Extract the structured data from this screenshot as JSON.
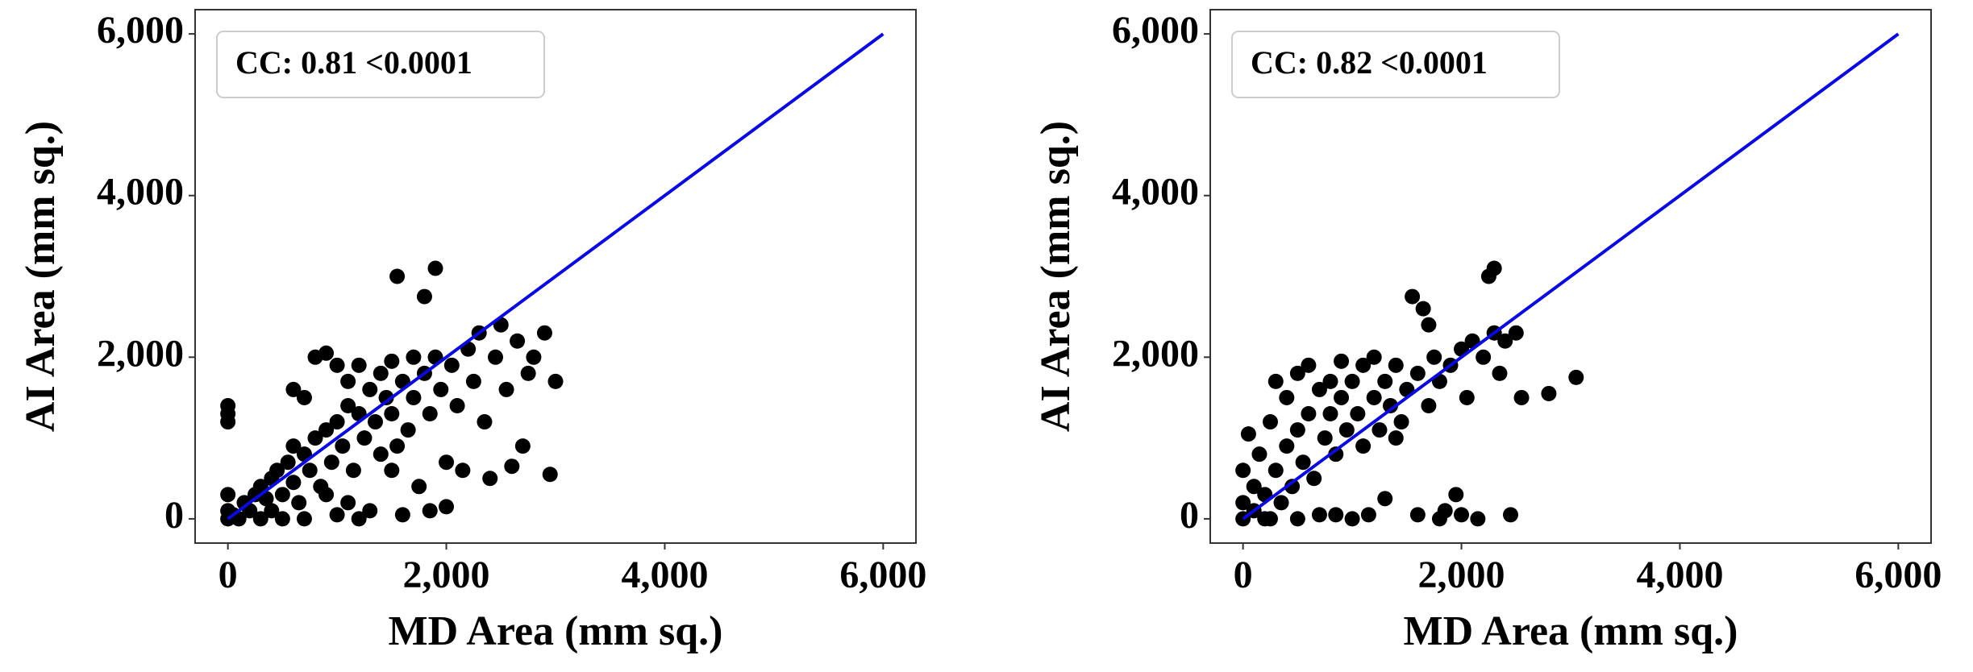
{
  "chart_data": [
    {
      "type": "scatter",
      "annotation": "CC: 0.81 <0.0001",
      "xlabel": "MD Area (mm sq.)",
      "ylabel": "AI Area (mm sq.)",
      "color": "#000000",
      "xlim": [
        -300,
        6300
      ],
      "ylim": [
        -300,
        6300
      ],
      "xticks": [
        0,
        {
          "value": 2000,
          "label": "2,000"
        },
        {
          "value": 4000,
          "label": "4,000"
        },
        {
          "value": 6000,
          "label": "6,000"
        }
      ],
      "yticks": [
        0,
        {
          "value": 2000,
          "label": "2,000"
        },
        {
          "value": 4000,
          "label": "4,000"
        },
        {
          "value": 6000,
          "label": "6,000"
        }
      ],
      "lines": [
        {
          "x": [
            0,
            6000
          ],
          "y": [
            0,
            6000
          ],
          "color": "#0a0adc"
        }
      ],
      "x": [
        0,
        0,
        0,
        0,
        0,
        0,
        50,
        100,
        150,
        200,
        250,
        300,
        300,
        350,
        400,
        400,
        450,
        500,
        500,
        550,
        600,
        600,
        650,
        700,
        700,
        750,
        800,
        800,
        850,
        900,
        900,
        950,
        1000,
        1000,
        1050,
        1100,
        1100,
        1150,
        1200,
        1200,
        1250,
        1300,
        1300,
        1350,
        1400,
        1400,
        1450,
        1500,
        1500,
        1550,
        1550,
        1600,
        1650,
        1700,
        1700,
        1750,
        1800,
        1800,
        1850,
        1900,
        1900,
        1950,
        2000,
        2000,
        2050,
        2100,
        2150,
        2200,
        2250,
        2300,
        2350,
        2400,
        2450,
        2500,
        2550,
        2600,
        2650,
        2700,
        2750,
        2800,
        2900,
        2950,
        3000,
        1200,
        1600,
        1850,
        700,
        900,
        1100,
        600,
        1000,
        1500
      ],
      "y": [
        0,
        100,
        300,
        1200,
        1300,
        1400,
        50,
        0,
        200,
        100,
        300,
        0,
        400,
        250,
        500,
        100,
        600,
        300,
        0,
        700,
        450,
        900,
        200,
        800,
        1500,
        600,
        1000,
        2000,
        400,
        1100,
        2050,
        700,
        1200,
        50,
        900,
        1400,
        1700,
        600,
        1300,
        1900,
        1000,
        1600,
        100,
        1200,
        1800,
        800,
        1500,
        1300,
        1950,
        3000,
        900,
        1700,
        1100,
        1500,
        2000,
        400,
        1800,
        2750,
        1300,
        3100,
        2000,
        1600,
        700,
        150,
        1900,
        1400,
        600,
        2100,
        1700,
        2300,
        1200,
        500,
        2000,
        2400,
        1600,
        650,
        2200,
        900,
        1800,
        2000,
        2300,
        550,
        1700,
        0,
        50,
        100,
        0,
        300,
        200,
        1600,
        1900,
        600
      ]
    },
    {
      "type": "scatter",
      "annotation": "CC: 0.82 <0.0001",
      "xlabel": "MD Area (mm sq.)",
      "ylabel": "AI Area (mm sq.)",
      "color": "#000000",
      "xlim": [
        -300,
        6300
      ],
      "ylim": [
        -300,
        6300
      ],
      "xticks": [
        0,
        {
          "value": 2000,
          "label": "2,000"
        },
        {
          "value": 4000,
          "label": "4,000"
        },
        {
          "value": 6000,
          "label": "6,000"
        }
      ],
      "yticks": [
        0,
        {
          "value": 2000,
          "label": "2,000"
        },
        {
          "value": 4000,
          "label": "4,000"
        },
        {
          "value": 6000,
          "label": "6,000"
        }
      ],
      "lines": [
        {
          "x": [
            0,
            6000
          ],
          "y": [
            0,
            6000
          ],
          "color": "#0a0adc"
        }
      ],
      "x": [
        0,
        0,
        0,
        50,
        100,
        100,
        150,
        200,
        200,
        250,
        300,
        300,
        350,
        400,
        400,
        450,
        500,
        500,
        550,
        600,
        600,
        650,
        700,
        700,
        750,
        800,
        800,
        850,
        850,
        900,
        900,
        950,
        1000,
        1000,
        1050,
        1100,
        1100,
        1150,
        1200,
        1200,
        1250,
        1300,
        1300,
        1350,
        1400,
        1450,
        1500,
        1550,
        1600,
        1600,
        1650,
        1700,
        1750,
        1800,
        1800,
        1850,
        1900,
        1950,
        2000,
        2000,
        2050,
        2100,
        2150,
        2200,
        2250,
        2300,
        2300,
        2350,
        2400,
        2450,
        2500,
        2550,
        2800,
        3050,
        1700,
        1400,
        500,
        250
      ],
      "y": [
        0,
        200,
        600,
        1050,
        100,
        400,
        800,
        0,
        300,
        1200,
        600,
        1700,
        200,
        900,
        1500,
        400,
        1100,
        1800,
        700,
        1300,
        1900,
        500,
        1600,
        50,
        1000,
        1700,
        1300,
        800,
        50,
        1500,
        1950,
        1100,
        1700,
        0,
        1300,
        1900,
        900,
        50,
        1500,
        2000,
        1100,
        1700,
        250,
        1400,
        1900,
        1200,
        1600,
        2750,
        1800,
        50,
        2600,
        1400,
        2000,
        1700,
        0,
        100,
        1900,
        300,
        2100,
        50,
        1500,
        2200,
        0,
        2000,
        3000,
        3100,
        2300,
        1800,
        2200,
        50,
        2300,
        1500,
        1550,
        1750,
        2400,
        1000,
        0,
        0
      ]
    }
  ]
}
